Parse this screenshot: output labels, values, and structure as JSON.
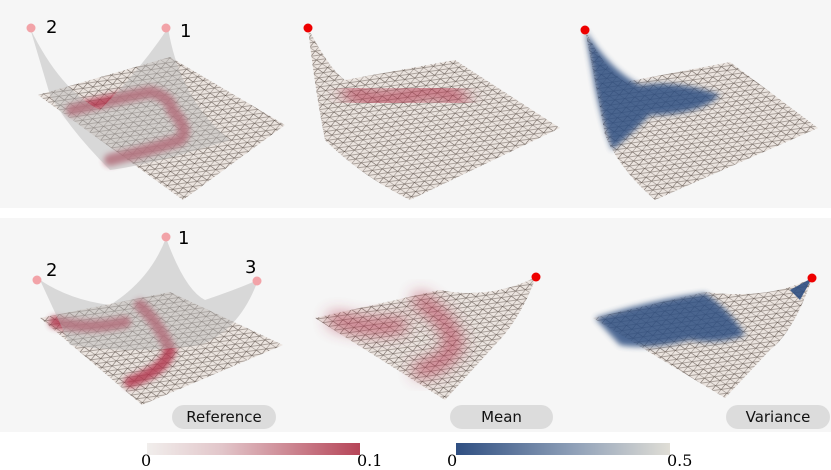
{
  "labels": {
    "reference": "Reference",
    "mean": "Mean",
    "variance": "Variance"
  },
  "row1_markers": [
    "1",
    "2"
  ],
  "row2_markers": [
    "1",
    "2",
    "3"
  ],
  "colorbars": {
    "red": {
      "min": "0",
      "max": "0.1",
      "start_color": "#f1eeec",
      "end_color": "#b64558"
    },
    "blue": {
      "min": "0",
      "max": "0.5",
      "start_color": "#2f4f82",
      "end_color": "#e0ded6"
    }
  },
  "colors": {
    "mesh_fill": "#ebe4df",
    "mesh_line": "#5a4f48",
    "trace_red": "#b2384f",
    "variance_blue": "#2f4f82",
    "marker_light": "#f2a3a8",
    "marker_solid": "#ee0000"
  }
}
